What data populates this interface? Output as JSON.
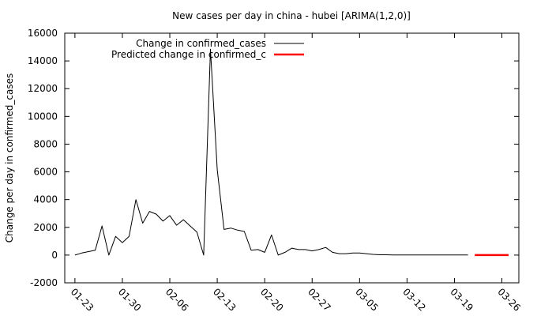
{
  "chart_data": {
    "type": "line",
    "title": "New cases per day in china - hubei [ARIMA(1,2,0)]",
    "ylabel": "Change per day in confirmed_cases",
    "xlabel": "",
    "ylim": [
      -2000,
      16000
    ],
    "yticks": [
      -2000,
      0,
      2000,
      4000,
      6000,
      8000,
      10000,
      12000,
      14000,
      16000
    ],
    "x_start_date": "01-22",
    "xlim": [
      -0.5,
      66.5
    ],
    "xticks": [
      {
        "day": 1,
        "label": "01-23"
      },
      {
        "day": 8,
        "label": "01-30"
      },
      {
        "day": 15,
        "label": "02-06"
      },
      {
        "day": 22,
        "label": "02-13"
      },
      {
        "day": 29,
        "label": "02-20"
      },
      {
        "day": 36,
        "label": "02-27"
      },
      {
        "day": 43,
        "label": "03-05"
      },
      {
        "day": 50,
        "label": "03-12"
      },
      {
        "day": 57,
        "label": "03-19"
      },
      {
        "day": 64,
        "label": "03-26"
      }
    ],
    "legend_position": "top-left",
    "series": [
      {
        "name": "Change in confirmed_cases",
        "color": "#000000",
        "x": [
          1,
          2,
          3,
          4,
          5,
          6,
          7,
          8,
          9,
          10,
          11,
          12,
          13,
          14,
          15,
          16,
          17,
          18,
          19,
          20,
          21,
          22,
          23,
          24,
          25,
          26,
          27,
          28,
          29,
          30,
          31,
          32,
          33,
          34,
          35,
          36,
          37,
          38,
          39,
          40,
          41,
          42,
          43,
          44,
          45,
          46,
          47,
          48,
          49,
          50,
          51,
          52,
          53,
          54,
          55,
          56,
          57,
          58,
          59
        ],
        "values": [
          0,
          150,
          250,
          350,
          2100,
          0,
          1350,
          900,
          1350,
          4000,
          2300,
          3150,
          2950,
          2450,
          2850,
          2150,
          2550,
          2100,
          1650,
          0,
          14850,
          6150,
          1850,
          1950,
          1800,
          1700,
          350,
          400,
          200,
          1450,
          0,
          200,
          500,
          400,
          400,
          300,
          400,
          550,
          200,
          100,
          100,
          150,
          150,
          100,
          50,
          20,
          20,
          10,
          10,
          5,
          5,
          5,
          5,
          5,
          5,
          5,
          5,
          5,
          5
        ]
      },
      {
        "name": "Predicted change in confirmed_c",
        "color": "#ff0000",
        "x": [
          60,
          61,
          62,
          63,
          64,
          65
        ],
        "values": [
          0,
          0,
          0,
          0,
          0,
          0
        ]
      }
    ]
  }
}
